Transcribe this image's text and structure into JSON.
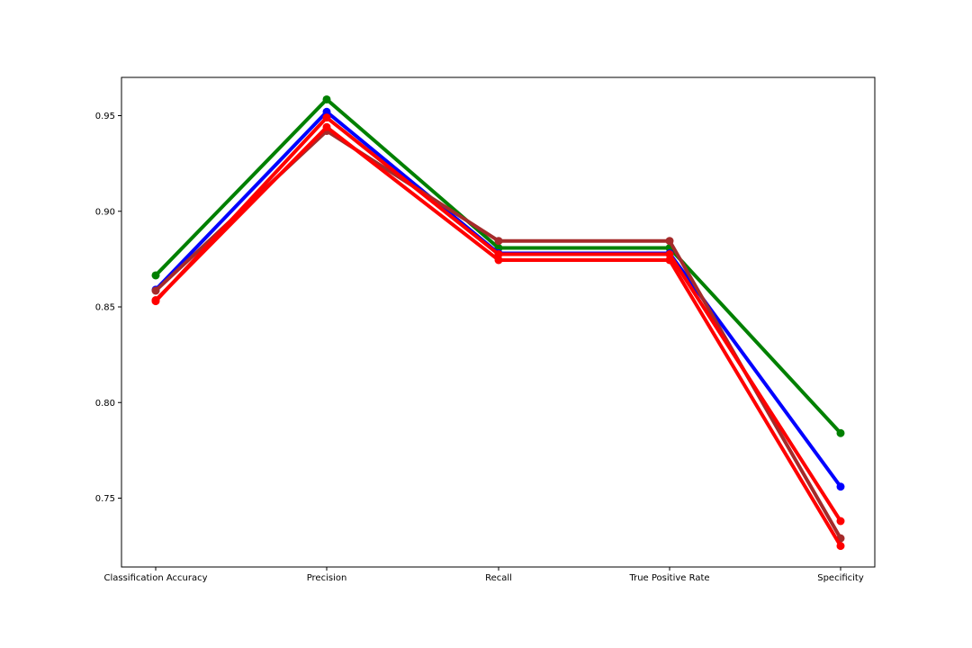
{
  "chart_data": {
    "type": "line",
    "title": "",
    "xlabel": "",
    "ylabel": "",
    "categories": [
      "Classification Accuracy",
      "Precision",
      "Recall",
      "True Positive Rate",
      "Specificity"
    ],
    "ylim": [
      0.714,
      0.97
    ],
    "yticks": [
      0.75,
      0.8,
      0.85,
      0.9,
      0.95
    ],
    "ytick_labels": [
      "0.75",
      "0.80",
      "0.85",
      "0.90",
      "0.95"
    ],
    "grid": false,
    "series": [
      {
        "color": "#008000",
        "values": [
          0.8665,
          0.9585,
          0.8808,
          0.8808,
          0.784
        ]
      },
      {
        "color": "#0000ff",
        "values": [
          0.859,
          0.952,
          0.878,
          0.878,
          0.756
        ]
      },
      {
        "color": "#a52a2a",
        "values": [
          0.8585,
          0.942,
          0.8845,
          0.8845,
          0.729
        ]
      },
      {
        "color": "#ff0000",
        "values": [
          0.853,
          0.949,
          0.8775,
          0.8775,
          0.738
        ]
      },
      {
        "color": "#ff0000",
        "values": [
          0.8535,
          0.944,
          0.8745,
          0.8745,
          0.725
        ]
      }
    ]
  }
}
